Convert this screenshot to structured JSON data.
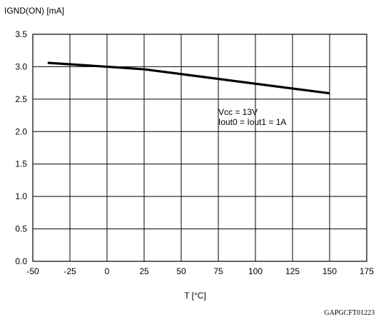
{
  "chart_data": {
    "type": "line",
    "ylabel": "IGND(ON) [mA]",
    "xlabel": "T [°C]",
    "ylim": [
      0.0,
      3.5
    ],
    "xlim": [
      -50,
      175
    ],
    "yticks": [
      "0.0",
      "0.5",
      "1.0",
      "1.5",
      "2.0",
      "2.5",
      "3.0",
      "3.5"
    ],
    "xticks": [
      "-50",
      "-25",
      "0",
      "25",
      "50",
      "75",
      "100",
      "125",
      "150",
      "175"
    ],
    "grid": true,
    "annotation": [
      "Vcc = 13V",
      "Iout0 = Iout1 = 1A"
    ],
    "series": [
      {
        "x": [
          -40,
          0,
          25,
          150
        ],
        "y": [
          3.06,
          3.0,
          2.96,
          2.59
        ]
      }
    ],
    "footer": "GAPGCFT01223"
  }
}
